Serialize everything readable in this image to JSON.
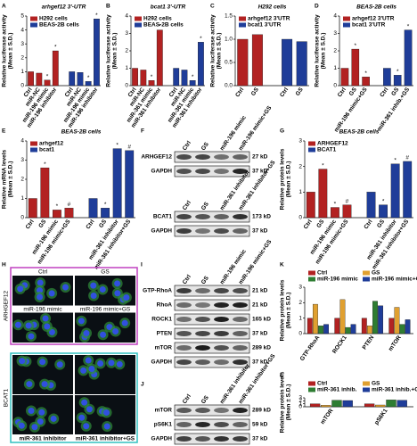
{
  "chart_data": [
    {
      "letter": "A",
      "type": "bar",
      "title": "arhgef12 3'-UTR",
      "ylabel": [
        "Relative luciferase activity",
        "(Mean ± S.D.)"
      ],
      "ylim": [
        0,
        5
      ],
      "yticks": [
        0,
        1,
        2,
        3,
        4,
        5
      ],
      "series": [
        {
          "name": "H292 cells",
          "color": "#b22222",
          "categories": [
            "Ctrl",
            "miR-NC",
            "miR-196 mimic",
            "miR-196 inhibitor"
          ],
          "values": [
            1.0,
            0.9,
            0.4,
            2.5
          ],
          "marks": [
            null,
            null,
            "*",
            "*"
          ]
        },
        {
          "name": "BEAS-2B cells",
          "color": "#1f3d99",
          "categories": [
            "Ctrl",
            "miR-NC",
            "miR-196 mimic",
            "miR-196 inhibitor"
          ],
          "values": [
            1.0,
            0.95,
            0.3,
            4.8
          ],
          "marks": [
            null,
            null,
            "*",
            "*"
          ]
        }
      ]
    },
    {
      "letter": "B",
      "type": "bar",
      "title": "bcat1 3'-UTR",
      "ylabel": [
        "Relative luciferase activity",
        "(Mean ± S.D.)"
      ],
      "ylim": [
        0,
        4
      ],
      "yticks": [
        0,
        1,
        2,
        3,
        4
      ],
      "series": [
        {
          "name": "H292 cells",
          "color": "#b22222",
          "categories": [
            "Ctrl",
            "miR-NC",
            "miR-361 mimic",
            "miR-361 inhibitor"
          ],
          "values": [
            1.0,
            0.9,
            0.3,
            3.2
          ],
          "marks": [
            null,
            null,
            "*",
            "*"
          ]
        },
        {
          "name": "BEAS-2B cells",
          "color": "#1f3d99",
          "categories": [
            "Ctrl",
            "miR-NC",
            "miR-361 mimic",
            "miR-361 inhibitor"
          ],
          "values": [
            1.0,
            0.9,
            0.3,
            2.5
          ],
          "marks": [
            null,
            null,
            "*",
            "*"
          ]
        }
      ]
    },
    {
      "letter": "C",
      "type": "bar",
      "title": "H292 cells",
      "ylabel": [
        "Relative luciferase activity",
        "(Mean ± S.D.)"
      ],
      "ylim": [
        0,
        1.5
      ],
      "yticks": [
        {
          "value": 0,
          "label": "0.0"
        },
        {
          "value": 0.5,
          "label": "0.5"
        },
        {
          "value": 1,
          "label": "1.0"
        },
        {
          "value": 1.5,
          "label": "1.5"
        }
      ],
      "series": [
        {
          "name": "arhgef12 3'UTR",
          "color": "#b22222",
          "categories": [
            "Ctrl",
            "GS"
          ],
          "values": [
            1.0,
            1.1
          ]
        },
        {
          "name": "bcat1 3'UTR",
          "color": "#1f3d99",
          "categories": [
            "Ctrl",
            "GS"
          ],
          "values": [
            1.0,
            0.95
          ]
        }
      ]
    },
    {
      "letter": "D",
      "type": "bar",
      "title": "BEAS-2B cells",
      "ylabel": [
        "Relative luciferase activity",
        "(Mean ± S.D.)"
      ],
      "ylim": [
        0,
        4
      ],
      "yticks": [
        0,
        1,
        2,
        3,
        4
      ],
      "series": [
        {
          "name": "arhgef12 3'UTR",
          "color": "#b22222",
          "categories": [
            "Ctrl",
            "GS",
            "miR-196 mimic+GS"
          ],
          "values": [
            1.0,
            2.1,
            0.5
          ],
          "marks": [
            null,
            "*",
            "*"
          ]
        },
        {
          "name": "bcat1 3'UTR",
          "color": "#1f3d99",
          "categories": [
            "Ctrl",
            "GS",
            "miR-361 inhib.+GS"
          ],
          "values": [
            1.0,
            0.6,
            3.2
          ],
          "marks": [
            null,
            "*",
            "*"
          ]
        }
      ]
    },
    {
      "letter": "E",
      "type": "bar",
      "title": "BEAS-2B cells",
      "ylabel": [
        "Relative mRNA levels",
        "(Mean ± S.D.)"
      ],
      "ylim": [
        0,
        4
      ],
      "yticks": [
        0,
        1,
        2,
        3,
        4
      ],
      "series": [
        {
          "name": "arhgef12",
          "color": "#b22222",
          "categories": [
            "Ctrl",
            "GS",
            "miR-196 mimic",
            "miR-196 mimic+GS"
          ],
          "values": [
            1.0,
            2.6,
            0.4,
            0.5
          ],
          "marks": [
            null,
            "*",
            "*",
            "#"
          ]
        },
        {
          "name": "bcat1",
          "color": "#1f3d99",
          "categories": [
            "Ctrl",
            "GS",
            "miR-361 inhibitor",
            "miR-361 inhibitor+GS"
          ],
          "values": [
            1.0,
            0.5,
            3.6,
            3.5
          ],
          "marks": [
            null,
            "*",
            "*",
            "#"
          ]
        }
      ]
    },
    {
      "letter": "G",
      "type": "bar",
      "title": "BEAS-2B cells",
      "ylabel": [
        "Relative protein levels",
        "(Mean ± S.D.)"
      ],
      "ylim": [
        0,
        3
      ],
      "yticks": [
        0,
        1,
        2,
        3
      ],
      "series": [
        {
          "name": "ARHGEF12",
          "color": "#b22222",
          "categories": [
            "Ctrl",
            "GS",
            "miR-196 mimic",
            "miR-196 mimic+GS"
          ],
          "values": [
            1.0,
            1.9,
            0.4,
            0.5
          ],
          "marks": [
            null,
            "*",
            "*",
            "#"
          ]
        },
        {
          "name": "BCAT1",
          "color": "#1f3d99",
          "categories": [
            "Ctrl",
            "GS",
            "miR-361 inhibitor",
            "miR-361 inhibitor+GS"
          ],
          "values": [
            1.0,
            0.5,
            2.1,
            2.2
          ],
          "marks": [
            null,
            "*",
            "*",
            "#"
          ]
        }
      ]
    },
    {
      "letter": "K",
      "type": "bar",
      "ylabel": [
        "Relative protein levels",
        "(Mean ± S.D.)"
      ],
      "ylim": [
        0,
        3
      ],
      "yticks": [
        0,
        1,
        2,
        3
      ],
      "categories": [
        "GTP-RhoA",
        "ROCK1",
        "PTEN",
        "mTOR"
      ],
      "series": [
        {
          "name": "Ctrl",
          "color": "#b22222",
          "values": [
            1.0,
            1.0,
            1.0,
            1.0
          ]
        },
        {
          "name": "GS",
          "color": "#e0a030",
          "values": [
            1.9,
            2.2,
            0.5,
            1.7
          ]
        },
        {
          "name": "miR-196 mimic",
          "color": "#2e7d32",
          "values": [
            0.5,
            0.4,
            2.1,
            0.6
          ]
        },
        {
          "name": "miR-196 mimic+GS",
          "color": "#1f3d99",
          "values": [
            0.6,
            0.6,
            1.8,
            0.9
          ]
        }
      ]
    },
    {
      "letter": "L",
      "type": "bar",
      "ylabel": [
        "Relative protein levels",
        "(Mean ± S.D.)"
      ],
      "ylim": [
        0,
        3
      ],
      "yticks": [
        0,
        1,
        2,
        3
      ],
      "categories": [
        "mTOR",
        "pS6K1"
      ],
      "series": [
        {
          "name": "Ctrl",
          "color": "#b22222",
          "values": [
            1.0,
            1.0
          ]
        },
        {
          "name": "GS",
          "color": "#e0a030",
          "values": [
            0.5,
            0.6
          ]
        },
        {
          "name": "miR-361 inhib.",
          "color": "#2e7d32",
          "values": [
            2.2,
            2.3
          ]
        },
        {
          "name": "miR-361 inhib.+GS",
          "color": "#1f3d99",
          "values": [
            2.1,
            2.2
          ]
        }
      ]
    }
  ],
  "blots": [
    {
      "letter": "F",
      "columns": [
        "Ctrl",
        "GS",
        "miR-196 mimic",
        "miR-196 mimic+GS"
      ],
      "rows": [
        {
          "label": "ARHGEF12",
          "size": "27 kD"
        },
        {
          "label": "GAPDH",
          "size": "37 kD"
        }
      ]
    },
    {
      "columns": [
        "Ctrl",
        "GS",
        "miR-361 inhibitor",
        "miR-361 inhibitor+GS"
      ],
      "rows": [
        {
          "label": "BCAT1",
          "size": "173 kD"
        },
        {
          "label": "GAPDH",
          "size": "37 kD"
        }
      ]
    },
    {
      "letter": "I",
      "columns": [
        "Ctrl",
        "GS",
        "miR-196 mimic",
        "miR-196 mimic+GS"
      ],
      "rows": [
        {
          "label": "GTP-RhoA",
          "size": "21 kD"
        },
        {
          "label": "RhoA",
          "size": "21 kD"
        },
        {
          "label": "ROCK1",
          "size": "165 kD"
        },
        {
          "label": "PTEN",
          "size": "37 kD"
        },
        {
          "label": "mTOR",
          "size": "289 kD"
        },
        {
          "label": "GAPDH",
          "size": "37 kD"
        }
      ]
    },
    {
      "letter": "J",
      "columns": [
        "Ctrl",
        "GS",
        "miR-361 inhibitor",
        "miR-361 inhibitor+GS"
      ],
      "rows": [
        {
          "label": "mTOR",
          "size": "289 kD"
        },
        {
          "label": "pS6K1",
          "size": "59 kD"
        },
        {
          "label": "GAPDH",
          "size": "37 kD"
        }
      ]
    }
  ],
  "image": {
    "letter": "H",
    "blocks": [
      {
        "label": "ARHGEF12",
        "color": "#c040c0",
        "top": [
          "Ctrl",
          "GS"
        ],
        "bottom": [
          "miR-196 mimic",
          "miR-196 mimic+GS"
        ]
      },
      {
        "label": "BCAT1",
        "color": "#30c0c0",
        "bottom": [
          "miR-361 inhibitor",
          "miR-361 inhibitor+GS"
        ]
      }
    ]
  }
}
